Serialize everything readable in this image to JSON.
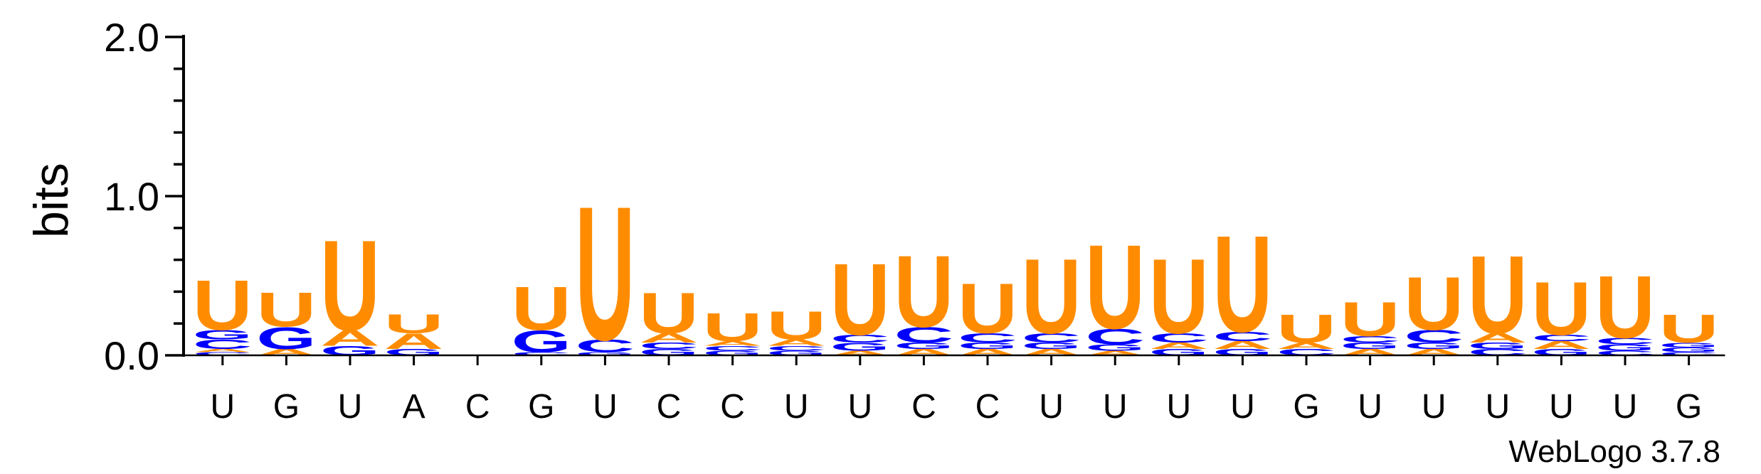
{
  "chart_data": {
    "type": "sequence_logo",
    "ylabel": "bits",
    "ylim": [
      0,
      2.0
    ],
    "yticks": [
      "0.0",
      "1.0",
      "2.0"
    ],
    "colors": {
      "U": "#ff8c00",
      "A": "#ff8c00",
      "G": "#0000ff",
      "C": "#0000ff"
    },
    "positions": [
      {
        "label": "U",
        "stack": [
          [
            "C",
            0.02
          ],
          [
            "A",
            0.02
          ],
          [
            "C",
            0.06
          ],
          [
            "G",
            0.06
          ],
          [
            "U",
            0.32
          ]
        ]
      },
      {
        "label": "G",
        "stack": [
          [
            "A",
            0.04
          ],
          [
            "G",
            0.14
          ],
          [
            "U",
            0.22
          ]
        ]
      },
      {
        "label": "U",
        "stack": [
          [
            "G",
            0.06
          ],
          [
            "A",
            0.1
          ],
          [
            "U",
            0.58
          ]
        ]
      },
      {
        "label": "A",
        "stack": [
          [
            "G",
            0.04
          ],
          [
            "A",
            0.1
          ],
          [
            "U",
            0.12
          ]
        ]
      },
      {
        "label": "C",
        "stack": []
      },
      {
        "label": "G",
        "stack": [
          [
            "C",
            0.02
          ],
          [
            "G",
            0.14
          ],
          [
            "U",
            0.28
          ]
        ]
      },
      {
        "label": "U",
        "stack": [
          [
            "G",
            0.02
          ],
          [
            "C",
            0.08
          ],
          [
            "U",
            0.86
          ]
        ]
      },
      {
        "label": "C",
        "stack": [
          [
            "G",
            0.04
          ],
          [
            "C",
            0.04
          ],
          [
            "A",
            0.06
          ],
          [
            "U",
            0.26
          ]
        ]
      },
      {
        "label": "C",
        "stack": [
          [
            "G",
            0.03
          ],
          [
            "C",
            0.03
          ],
          [
            "A",
            0.03
          ],
          [
            "U",
            0.18
          ]
        ]
      },
      {
        "label": "U",
        "stack": [
          [
            "G",
            0.03
          ],
          [
            "C",
            0.03
          ],
          [
            "A",
            0.04
          ],
          [
            "U",
            0.18
          ]
        ]
      },
      {
        "label": "U",
        "stack": [
          [
            "A",
            0.03
          ],
          [
            "G",
            0.05
          ],
          [
            "C",
            0.05
          ],
          [
            "U",
            0.46
          ]
        ]
      },
      {
        "label": "C",
        "stack": [
          [
            "A",
            0.04
          ],
          [
            "G",
            0.04
          ],
          [
            "C",
            0.1
          ],
          [
            "U",
            0.46
          ]
        ]
      },
      {
        "label": "C",
        "stack": [
          [
            "A",
            0.04
          ],
          [
            "G",
            0.04
          ],
          [
            "C",
            0.06
          ],
          [
            "U",
            0.32
          ]
        ]
      },
      {
        "label": "U",
        "stack": [
          [
            "A",
            0.04
          ],
          [
            "G",
            0.04
          ],
          [
            "C",
            0.06
          ],
          [
            "U",
            0.48
          ]
        ]
      },
      {
        "label": "U",
        "stack": [
          [
            "A",
            0.03
          ],
          [
            "G",
            0.04
          ],
          [
            "C",
            0.1
          ],
          [
            "U",
            0.54
          ]
        ]
      },
      {
        "label": "U",
        "stack": [
          [
            "G",
            0.04
          ],
          [
            "A",
            0.04
          ],
          [
            "C",
            0.06
          ],
          [
            "U",
            0.48
          ]
        ]
      },
      {
        "label": "U",
        "stack": [
          [
            "G",
            0.04
          ],
          [
            "A",
            0.05
          ],
          [
            "C",
            0.06
          ],
          [
            "U",
            0.62
          ]
        ]
      },
      {
        "label": "G",
        "stack": [
          [
            "C",
            0.04
          ],
          [
            "A",
            0.04
          ],
          [
            "U",
            0.18
          ]
        ]
      },
      {
        "label": "U",
        "stack": [
          [
            "A",
            0.04
          ],
          [
            "G",
            0.04
          ],
          [
            "C",
            0.04
          ],
          [
            "U",
            0.22
          ]
        ]
      },
      {
        "label": "U",
        "stack": [
          [
            "A",
            0.04
          ],
          [
            "G",
            0.04
          ],
          [
            "C",
            0.08
          ],
          [
            "U",
            0.34
          ]
        ]
      },
      {
        "label": "U",
        "stack": [
          [
            "C",
            0.04
          ],
          [
            "G",
            0.04
          ],
          [
            "A",
            0.06
          ],
          [
            "U",
            0.5
          ]
        ]
      },
      {
        "label": "U",
        "stack": [
          [
            "G",
            0.04
          ],
          [
            "A",
            0.05
          ],
          [
            "C",
            0.04
          ],
          [
            "U",
            0.34
          ]
        ]
      },
      {
        "label": "U",
        "stack": [
          [
            "C",
            0.03
          ],
          [
            "G",
            0.04
          ],
          [
            "C",
            0.04
          ],
          [
            "U",
            0.4
          ]
        ]
      },
      {
        "label": "G",
        "stack": [
          [
            "C",
            0.02
          ],
          [
            "G",
            0.03
          ],
          [
            "G",
            0.03
          ],
          [
            "U",
            0.18
          ]
        ]
      }
    ],
    "credit": "WebLogo 3.7.8"
  }
}
